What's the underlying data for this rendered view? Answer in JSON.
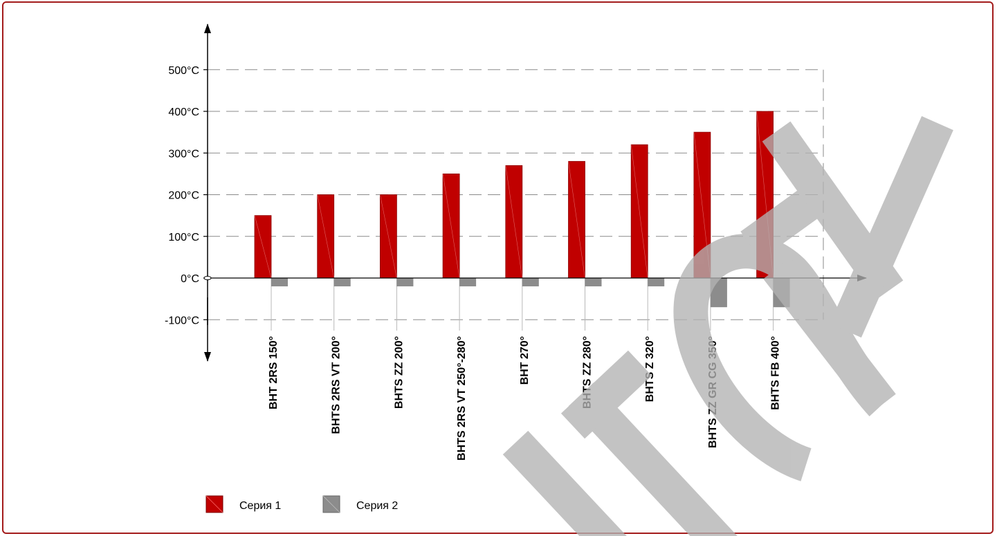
{
  "chart_data": {
    "type": "bar",
    "categories": [
      "BHT 2RS 150°",
      "BHTS 2RS VT 200°",
      "BHTS ZZ 200°",
      "BHTS 2RS VT 250°-280°",
      "BHT 270°",
      "BHTS ZZ 280°",
      "BHTS Z 320°",
      "BHTS ZZ GR CG 350°",
      "BHTS FB 400°"
    ],
    "series": [
      {
        "name": "Серия 1",
        "color": "#c00000",
        "values": [
          150,
          200,
          200,
          250,
          270,
          280,
          320,
          350,
          400
        ]
      },
      {
        "name": "Серия 2",
        "color": "#8c8c8c",
        "values": [
          -20,
          -20,
          -20,
          -20,
          -20,
          -20,
          -20,
          -70,
          -70
        ]
      }
    ],
    "yticks": [
      -100,
      0,
      100,
      200,
      300,
      400,
      500
    ],
    "ytick_labels": [
      "-100°C",
      "0°C",
      "100°C",
      "200°C",
      "300°C",
      "400°C",
      "500°C"
    ],
    "ylim": [
      -100,
      500
    ],
    "grid": true,
    "legend_position": "bottom-left",
    "title": "",
    "xlabel": "",
    "ylabel": ""
  },
  "watermark": {
    "text": "Italty",
    "color": "#b3b3b3"
  }
}
